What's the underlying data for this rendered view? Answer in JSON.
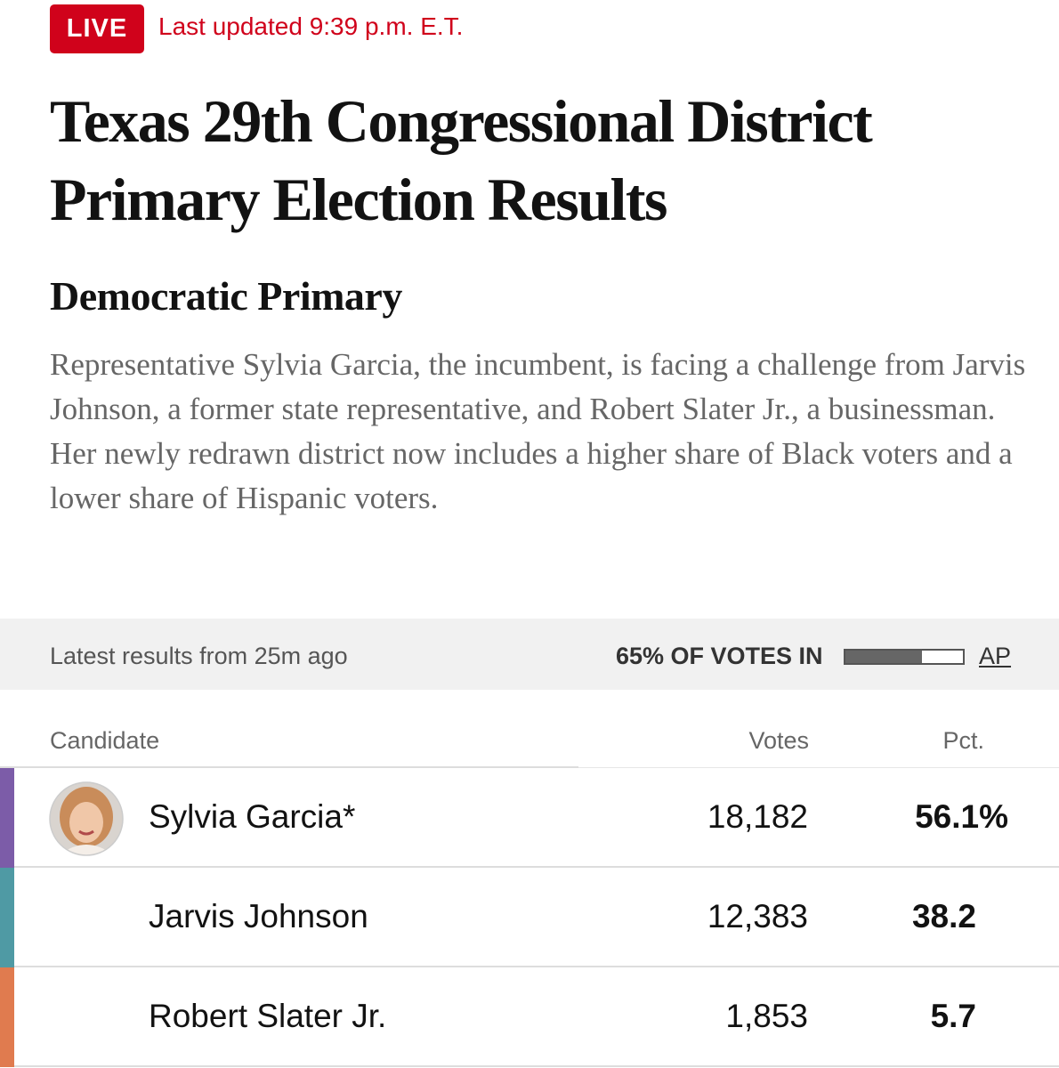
{
  "header": {
    "live_badge": "LIVE",
    "updated": "Last updated 9:39 p.m. E.T.",
    "title": "Texas 29th Congressional District Primary Election Results"
  },
  "section": {
    "title": "Democratic Primary",
    "description": "Representative Sylvia Garcia, the incumbent, is facing a challenge from Jarvis Johnson, a former state representative, and Robert Slater Jr., a businessman. Her newly redrawn district now includes a higher share of Black voters and a lower share of Hispanic voters."
  },
  "status": {
    "latest": "Latest results from 25m ago",
    "votes_in_label": "65% OF VOTES IN",
    "votes_in_pct": 65,
    "source": "AP"
  },
  "table": {
    "headers": [
      "Candidate",
      "Votes",
      "Pct."
    ],
    "rows": [
      {
        "name": "Sylvia Garcia*",
        "votes": "18,182",
        "pct": "56.1%",
        "color": "#7c5ca8"
      },
      {
        "name": "Jarvis Johnson",
        "votes": "12,383",
        "pct": "38.2",
        "color": "#4f9aa4"
      },
      {
        "name": "Robert Slater Jr.",
        "votes": "1,853",
        "pct": "5.7",
        "color": "#e07b4f"
      }
    ]
  }
}
